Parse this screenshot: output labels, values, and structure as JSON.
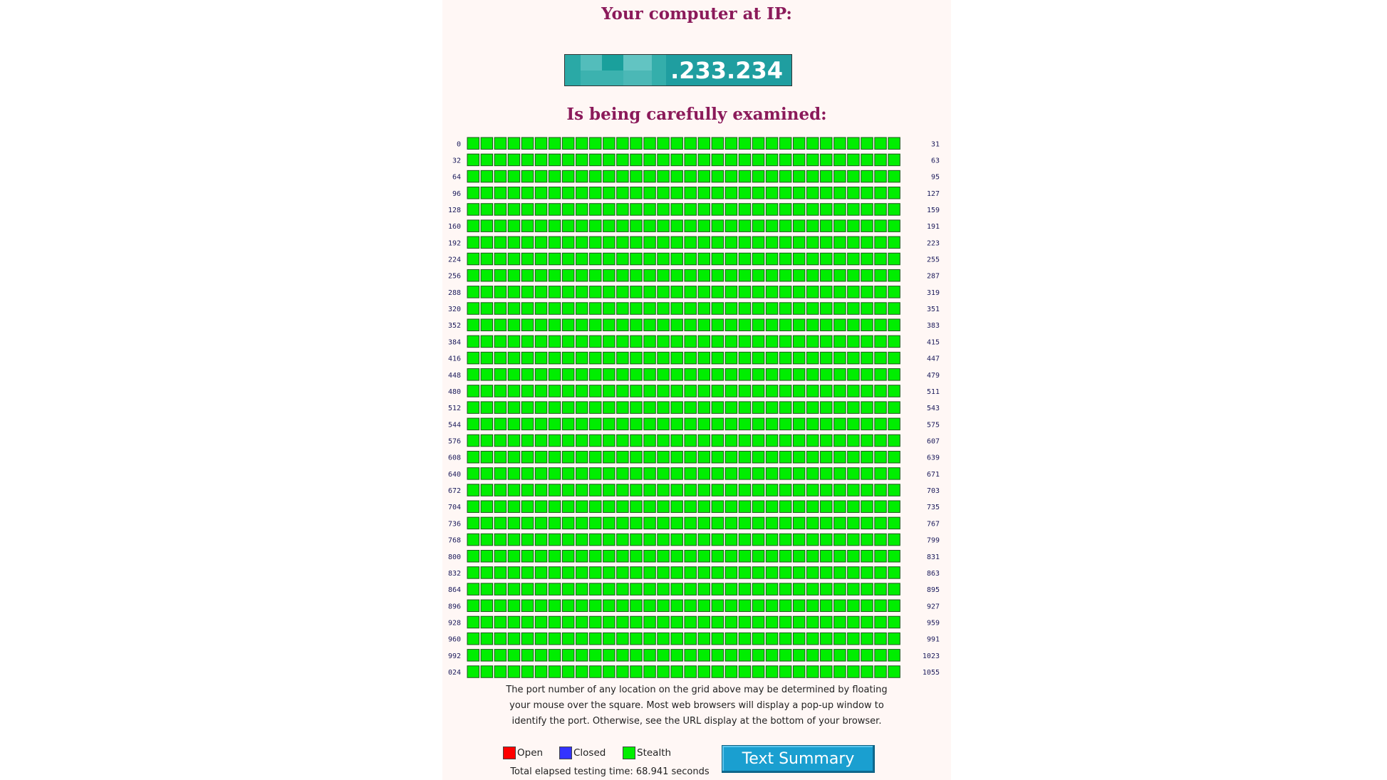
{
  "header": {
    "title": "Your computer at IP:",
    "ip": ".233.234",
    "subtitle": "Is being carefully examined:"
  },
  "grid": {
    "rows": [
      {
        "start": "0",
        "end": "31"
      },
      {
        "start": "32",
        "end": "63"
      },
      {
        "start": "64",
        "end": "95"
      },
      {
        "start": "96",
        "end": "127"
      },
      {
        "start": "128",
        "end": "159"
      },
      {
        "start": "160",
        "end": "191"
      },
      {
        "start": "192",
        "end": "223"
      },
      {
        "start": "224",
        "end": "255"
      },
      {
        "start": "256",
        "end": "287"
      },
      {
        "start": "288",
        "end": "319"
      },
      {
        "start": "320",
        "end": "351"
      },
      {
        "start": "352",
        "end": "383"
      },
      {
        "start": "384",
        "end": "415"
      },
      {
        "start": "416",
        "end": "447"
      },
      {
        "start": "448",
        "end": "479"
      },
      {
        "start": "480",
        "end": "511"
      },
      {
        "start": "512",
        "end": "543"
      },
      {
        "start": "544",
        "end": "575"
      },
      {
        "start": "576",
        "end": "607"
      },
      {
        "start": "608",
        "end": "639"
      },
      {
        "start": "640",
        "end": "671"
      },
      {
        "start": "672",
        "end": "703"
      },
      {
        "start": "704",
        "end": "735"
      },
      {
        "start": "736",
        "end": "767"
      },
      {
        "start": "768",
        "end": "799"
      },
      {
        "start": "800",
        "end": "831"
      },
      {
        "start": "832",
        "end": "863"
      },
      {
        "start": "864",
        "end": "895"
      },
      {
        "start": "896",
        "end": "927"
      },
      {
        "start": "928",
        "end": "959"
      },
      {
        "start": "960",
        "end": "991"
      },
      {
        "start": "992",
        "end": "1023"
      },
      {
        "start": "024",
        "end": "1055"
      }
    ]
  },
  "note": [
    "The port number of any location on the grid above may be determined by floating",
    "your mouse over the square. Most web browsers will display a pop-up window to",
    "identify the port. Otherwise, see the URL display at the bottom of your browser."
  ],
  "legend": [
    {
      "label": "Open",
      "color": "#ff0000"
    },
    {
      "label": "Closed",
      "color": "#3333ff"
    },
    {
      "label": "Stealth",
      "color": "#00ee00"
    }
  ],
  "button": "Text Summary",
  "footer": "Total elapsed testing time: 68.941 seconds"
}
